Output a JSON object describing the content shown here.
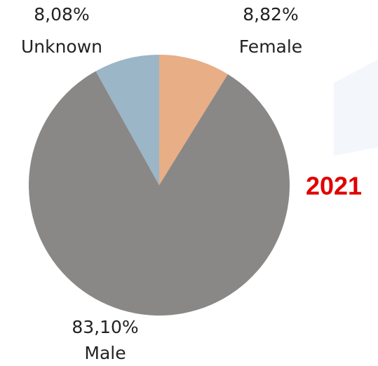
{
  "chart_data": {
    "type": "pie",
    "title": "2021",
    "categories": [
      "Female",
      "Male",
      "Unknown"
    ],
    "values": [
      8.82,
      83.1,
      8.08
    ],
    "value_labels": [
      "8,82%",
      "83,10%",
      "8,08%"
    ],
    "colors": [
      "#e8ae86",
      "#8a8887",
      "#9bb6c6"
    ]
  }
}
